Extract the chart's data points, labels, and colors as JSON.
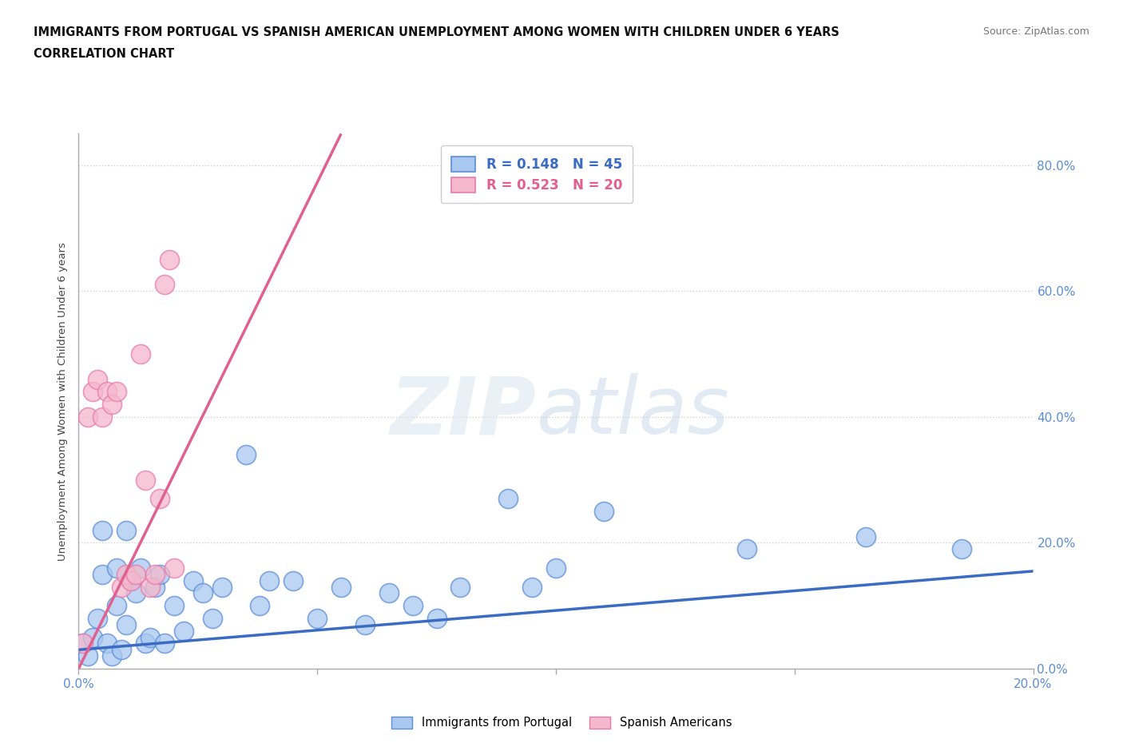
{
  "title_line1": "IMMIGRANTS FROM PORTUGAL VS SPANISH AMERICAN UNEMPLOYMENT AMONG WOMEN WITH CHILDREN UNDER 6 YEARS",
  "title_line2": "CORRELATION CHART",
  "source": "Source: ZipAtlas.com",
  "ylabel": "Unemployment Among Women with Children Under 6 years",
  "xlim": [
    0.0,
    0.2
  ],
  "ylim": [
    0.0,
    0.85
  ],
  "blue_R": "0.148",
  "blue_N": "45",
  "pink_R": "0.523",
  "pink_N": "20",
  "blue_color": "#a8c8f0",
  "pink_color": "#f5b8cc",
  "blue_edge_color": "#5b8dd9",
  "pink_edge_color": "#e87aaa",
  "blue_line_color": "#3a6cc4",
  "pink_line_color": "#e06090",
  "tick_color": "#5b8dd9",
  "blue_scatter_x": [
    0.001,
    0.002,
    0.003,
    0.004,
    0.005,
    0.005,
    0.006,
    0.007,
    0.008,
    0.008,
    0.009,
    0.01,
    0.01,
    0.011,
    0.012,
    0.013,
    0.014,
    0.015,
    0.016,
    0.017,
    0.018,
    0.02,
    0.022,
    0.024,
    0.026,
    0.028,
    0.03,
    0.035,
    0.038,
    0.04,
    0.045,
    0.05,
    0.055,
    0.06,
    0.065,
    0.07,
    0.075,
    0.08,
    0.09,
    0.095,
    0.1,
    0.11,
    0.14,
    0.165,
    0.185
  ],
  "blue_scatter_y": [
    0.04,
    0.02,
    0.05,
    0.08,
    0.15,
    0.22,
    0.04,
    0.02,
    0.1,
    0.16,
    0.03,
    0.07,
    0.22,
    0.14,
    0.12,
    0.16,
    0.04,
    0.05,
    0.13,
    0.15,
    0.04,
    0.1,
    0.06,
    0.14,
    0.12,
    0.08,
    0.13,
    0.34,
    0.1,
    0.14,
    0.14,
    0.08,
    0.13,
    0.07,
    0.12,
    0.1,
    0.08,
    0.13,
    0.27,
    0.13,
    0.16,
    0.25,
    0.19,
    0.21,
    0.19
  ],
  "pink_scatter_x": [
    0.001,
    0.002,
    0.003,
    0.004,
    0.005,
    0.006,
    0.007,
    0.008,
    0.009,
    0.01,
    0.011,
    0.012,
    0.013,
    0.014,
    0.015,
    0.016,
    0.017,
    0.018,
    0.019,
    0.02
  ],
  "pink_scatter_y": [
    0.04,
    0.4,
    0.44,
    0.46,
    0.4,
    0.44,
    0.42,
    0.44,
    0.13,
    0.15,
    0.14,
    0.15,
    0.5,
    0.3,
    0.13,
    0.15,
    0.27,
    0.61,
    0.65,
    0.16
  ],
  "blue_trend_x": [
    0.0,
    0.2
  ],
  "blue_trend_y": [
    0.03,
    0.155
  ],
  "pink_trend_x": [
    0.0,
    0.055
  ],
  "pink_trend_y": [
    0.0,
    0.85
  ]
}
